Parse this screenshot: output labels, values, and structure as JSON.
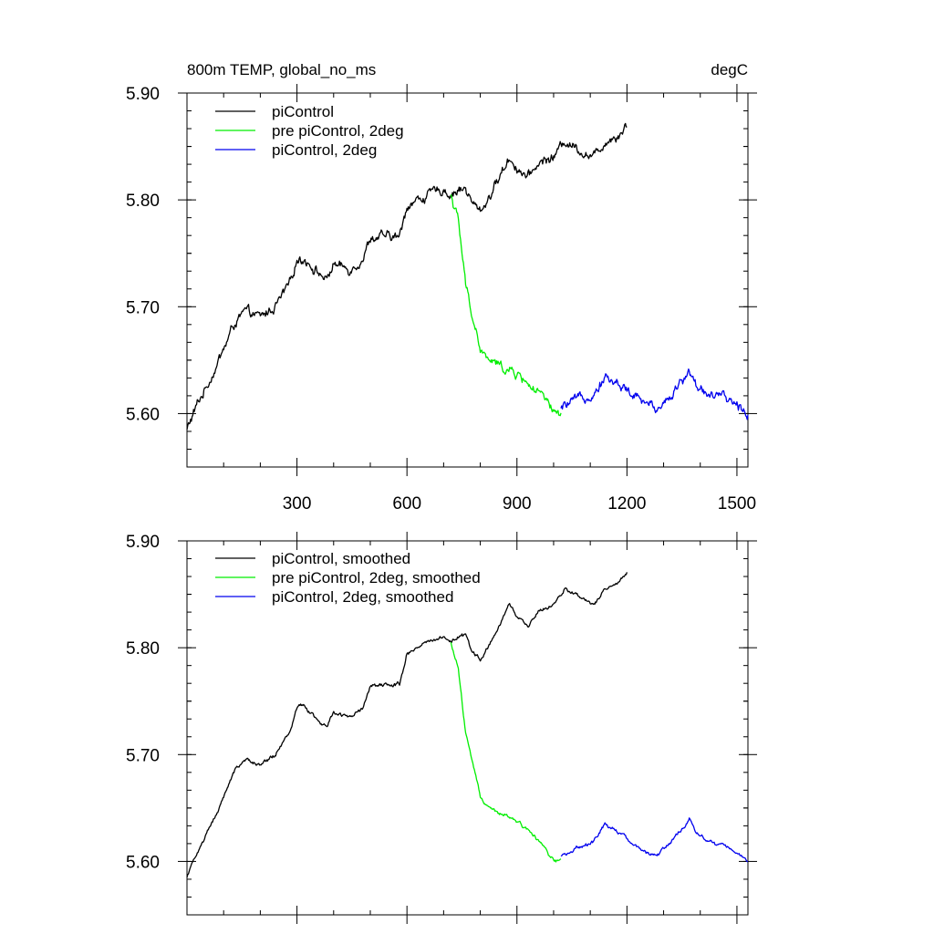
{
  "header": {
    "title_left": "800m TEMP, global_no_ms",
    "title_right": "degC"
  },
  "chart_data": [
    {
      "type": "line",
      "panel": "top",
      "xlim": [
        0,
        1530
      ],
      "ylim": [
        5.55,
        5.9
      ],
      "xticks": [
        300,
        600,
        900,
        1200,
        1500
      ],
      "xtick_labels": [
        "300",
        "600",
        "900",
        "1200",
        "1500"
      ],
      "yticks": [
        5.6,
        5.7,
        5.8,
        5.9
      ],
      "ytick_labels": [
        "5.60",
        "5.70",
        "5.80",
        "5.90"
      ],
      "grid": false,
      "legend_position": "top-left",
      "series": [
        {
          "name": "piControl",
          "color": "#000000",
          "noise": 0.003,
          "x": [
            0,
            30,
            60,
            100,
            130,
            160,
            200,
            240,
            280,
            300,
            320,
            350,
            380,
            400,
            440,
            480,
            500,
            550,
            580,
            600,
            630,
            660,
            700,
            720,
            740,
            760,
            780,
            800,
            820,
            850,
            880,
            900,
            930,
            960,
            1000,
            1030,
            1060,
            1080,
            1110,
            1140,
            1170,
            1200
          ],
          "y": [
            5.585,
            5.61,
            5.63,
            5.66,
            5.685,
            5.695,
            5.69,
            5.7,
            5.72,
            5.745,
            5.745,
            5.735,
            5.725,
            5.74,
            5.735,
            5.745,
            5.765,
            5.765,
            5.765,
            5.795,
            5.8,
            5.805,
            5.81,
            5.805,
            5.81,
            5.81,
            5.795,
            5.79,
            5.8,
            5.82,
            5.84,
            5.83,
            5.82,
            5.835,
            5.84,
            5.855,
            5.85,
            5.845,
            5.84,
            5.855,
            5.86,
            5.87
          ]
        },
        {
          "name": "pre piControl, 2deg",
          "color": "#00ee00",
          "noise": 0.003,
          "x": [
            720,
            740,
            760,
            780,
            800,
            820,
            850,
            880,
            910,
            940,
            970,
            1000,
            1020
          ],
          "y": [
            5.805,
            5.78,
            5.72,
            5.69,
            5.66,
            5.65,
            5.645,
            5.64,
            5.635,
            5.625,
            5.615,
            5.6,
            5.6
          ]
        },
        {
          "name": "piControl, 2deg",
          "color": "#0000ee",
          "noise": 0.003,
          "x": [
            1020,
            1050,
            1080,
            1110,
            1140,
            1160,
            1190,
            1220,
            1250,
            1280,
            1310,
            1340,
            1370,
            1390,
            1420,
            1450,
            1480,
            1500,
            1530
          ],
          "y": [
            5.605,
            5.61,
            5.615,
            5.62,
            5.635,
            5.63,
            5.625,
            5.615,
            5.61,
            5.605,
            5.615,
            5.625,
            5.64,
            5.625,
            5.62,
            5.615,
            5.612,
            5.608,
            5.6
          ]
        }
      ]
    },
    {
      "type": "line",
      "panel": "bottom",
      "xlim": [
        0,
        1530
      ],
      "ylim": [
        5.55,
        5.9
      ],
      "xticks": [
        300,
        600,
        900,
        1200,
        1500
      ],
      "xtick_labels": [],
      "yticks": [
        5.6,
        5.7,
        5.8,
        5.9
      ],
      "ytick_labels": [
        "5.60",
        "5.70",
        "5.80",
        "5.90"
      ],
      "grid": false,
      "legend_position": "top-left",
      "series": [
        {
          "name": "piControl, smoothed",
          "color": "#000000",
          "noise": 0.0012,
          "x": [
            0,
            30,
            60,
            100,
            130,
            160,
            200,
            240,
            280,
            300,
            320,
            350,
            380,
            400,
            440,
            480,
            500,
            550,
            580,
            600,
            630,
            660,
            700,
            720,
            740,
            760,
            780,
            800,
            820,
            850,
            880,
            900,
            930,
            960,
            1000,
            1030,
            1060,
            1080,
            1110,
            1140,
            1170,
            1200
          ],
          "y": [
            5.585,
            5.61,
            5.63,
            5.66,
            5.685,
            5.695,
            5.69,
            5.7,
            5.72,
            5.745,
            5.745,
            5.735,
            5.725,
            5.74,
            5.735,
            5.745,
            5.765,
            5.765,
            5.765,
            5.795,
            5.8,
            5.805,
            5.81,
            5.805,
            5.81,
            5.81,
            5.795,
            5.79,
            5.8,
            5.82,
            5.84,
            5.83,
            5.82,
            5.835,
            5.84,
            5.855,
            5.85,
            5.845,
            5.84,
            5.855,
            5.86,
            5.87
          ]
        },
        {
          "name": "pre piControl, 2deg, smoothed",
          "color": "#00ee00",
          "noise": 0.0012,
          "x": [
            720,
            740,
            760,
            780,
            800,
            820,
            850,
            880,
            910,
            940,
            970,
            1000,
            1020
          ],
          "y": [
            5.805,
            5.78,
            5.72,
            5.69,
            5.66,
            5.65,
            5.645,
            5.64,
            5.635,
            5.625,
            5.615,
            5.6,
            5.6
          ]
        },
        {
          "name": "piControl, 2deg, smoothed",
          "color": "#0000ee",
          "noise": 0.0012,
          "x": [
            1020,
            1050,
            1080,
            1110,
            1140,
            1160,
            1190,
            1220,
            1250,
            1280,
            1310,
            1340,
            1370,
            1390,
            1420,
            1450,
            1480,
            1500,
            1530
          ],
          "y": [
            5.605,
            5.61,
            5.615,
            5.62,
            5.635,
            5.63,
            5.625,
            5.615,
            5.61,
            5.605,
            5.615,
            5.625,
            5.64,
            5.625,
            5.62,
            5.615,
            5.612,
            5.608,
            5.6
          ]
        }
      ]
    }
  ]
}
